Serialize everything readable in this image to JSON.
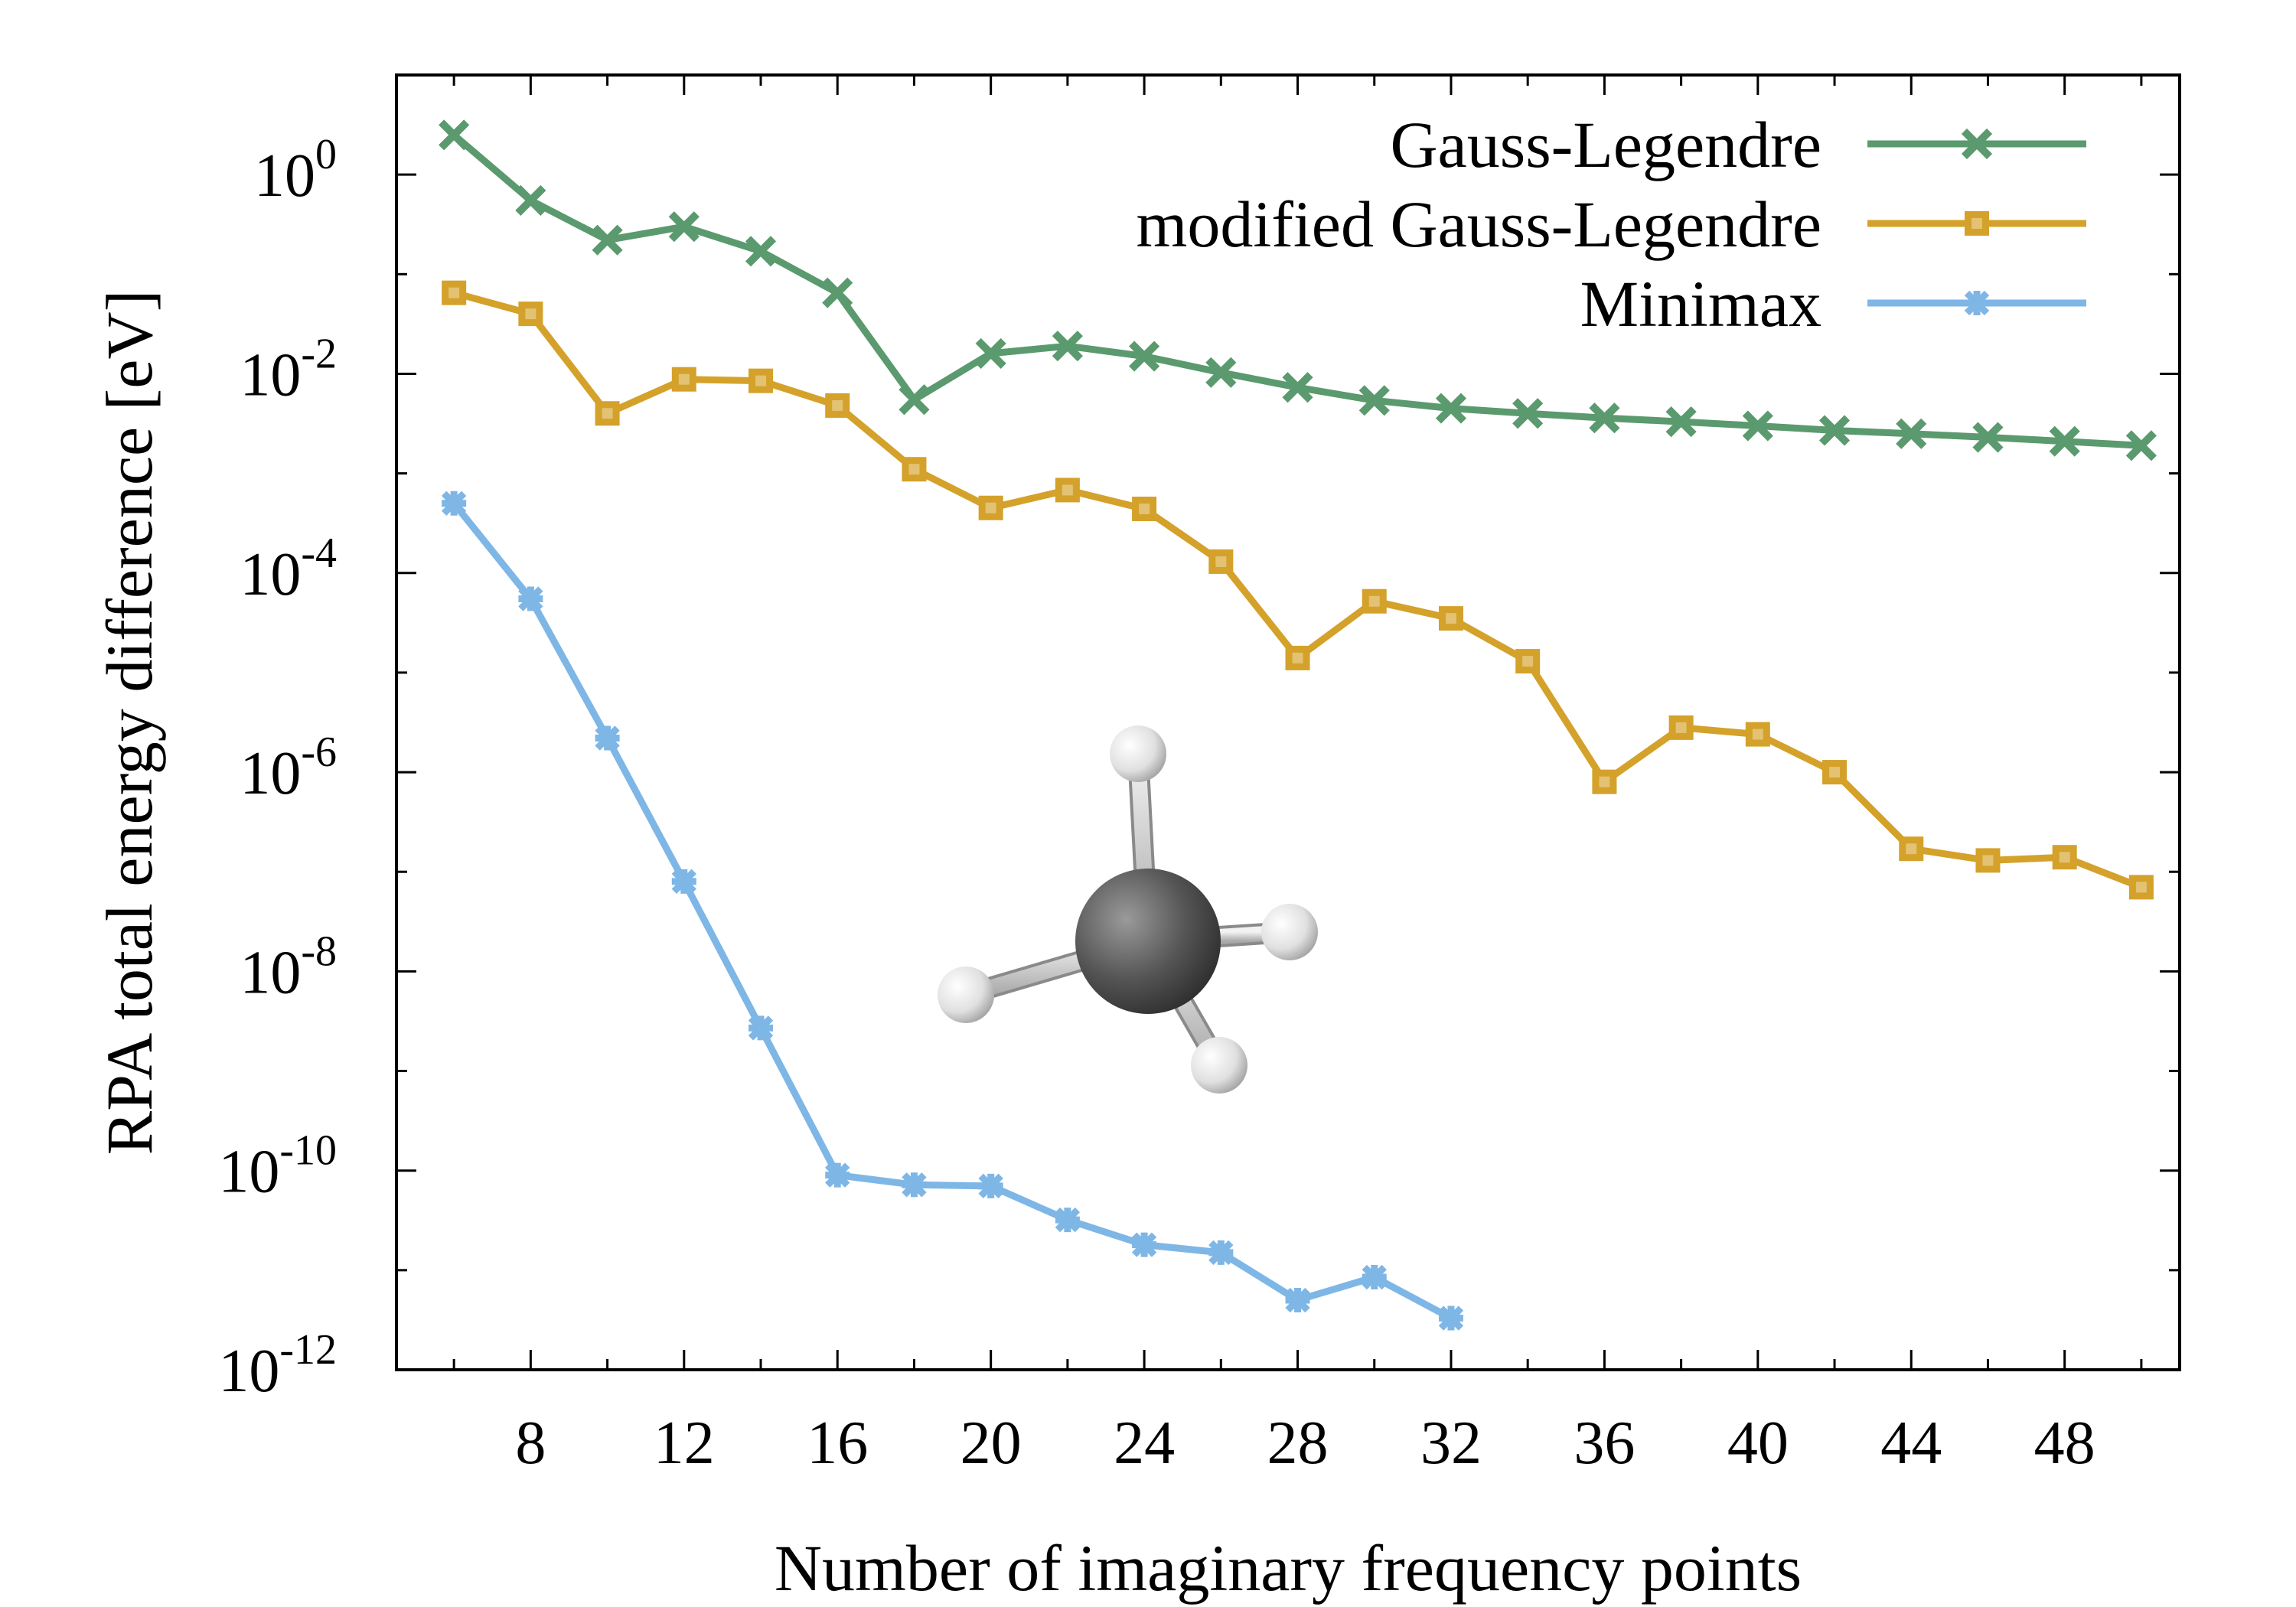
{
  "chart_data": {
    "type": "line",
    "title": "",
    "xlabel": "Number of imaginary frequency points",
    "ylabel": "RPA total energy difference [eV]",
    "xlim": [
      4.5,
      51
    ],
    "ylim": [
      1e-12,
      10.0
    ],
    "yscale": "log",
    "x_ticks": [
      8,
      12,
      16,
      20,
      24,
      28,
      32,
      36,
      40,
      44,
      48
    ],
    "y_ticks": [
      {
        "mantissa": "10",
        "exp": "0",
        "value": 1
      },
      {
        "mantissa": "10",
        "exp": "-2",
        "value": 0.01
      },
      {
        "mantissa": "10",
        "exp": "-4",
        "value": 0.0001
      },
      {
        "mantissa": "10",
        "exp": "-6",
        "value": 1e-06
      },
      {
        "mantissa": "10",
        "exp": "-8",
        "value": 1e-08
      },
      {
        "mantissa": "10",
        "exp": "-10",
        "value": 1e-10
      },
      {
        "mantissa": "10",
        "exp": "-12",
        "value": 1e-12
      }
    ],
    "grid": false,
    "legend_position": "top-right",
    "series": [
      {
        "name": "Gauss-Legendre",
        "color": "#5a9a6e",
        "marker": "cross",
        "x": [
          6,
          8,
          10,
          12,
          14,
          16,
          18,
          20,
          22,
          24,
          26,
          28,
          30,
          32,
          34,
          36,
          38,
          40,
          42,
          44,
          46,
          48,
          50
        ],
        "y": [
          2.5,
          0.55,
          0.22,
          0.3,
          0.17,
          0.065,
          0.0055,
          0.016,
          0.019,
          0.015,
          0.0103,
          0.0073,
          0.0054,
          0.0045,
          0.004,
          0.0036,
          0.0033,
          0.003,
          0.0027,
          0.0025,
          0.0023,
          0.0021,
          0.0019
        ]
      },
      {
        "name": "modified Gauss-Legendre",
        "color": "#d4a12a",
        "marker": "square",
        "x": [
          6,
          8,
          10,
          12,
          14,
          16,
          18,
          20,
          22,
          24,
          26,
          28,
          30,
          32,
          34,
          36,
          38,
          40,
          42,
          44,
          46,
          48,
          50
        ],
        "y": [
          0.065,
          0.04,
          0.004,
          0.0088,
          0.0085,
          0.0048,
          0.0011,
          0.00045,
          0.00068,
          0.00044,
          0.00013,
          1.4e-05,
          5.2e-05,
          3.5e-05,
          1.3e-05,
          8e-07,
          2.8e-06,
          2.4e-06,
          1e-06,
          1.7e-07,
          1.3e-07,
          1.4e-07,
          7e-08
        ]
      },
      {
        "name": "Minimax",
        "color": "#7eb6e6",
        "marker": "star",
        "x": [
          6,
          8,
          10,
          12,
          14,
          16,
          18,
          20,
          22,
          24,
          26,
          28,
          30,
          32
        ],
        "y": [
          0.0005,
          5.5e-05,
          2.2e-06,
          8e-08,
          2.7e-09,
          9e-11,
          7.2e-11,
          7e-11,
          3.2e-11,
          1.8e-11,
          1.5e-11,
          5e-12,
          8.5e-12,
          3.3e-12
        ]
      }
    ]
  },
  "inset": {
    "name": "methane-molecule",
    "atom_colors": {
      "carbon": "#555555",
      "hydrogen": "#e0e0e0"
    }
  }
}
